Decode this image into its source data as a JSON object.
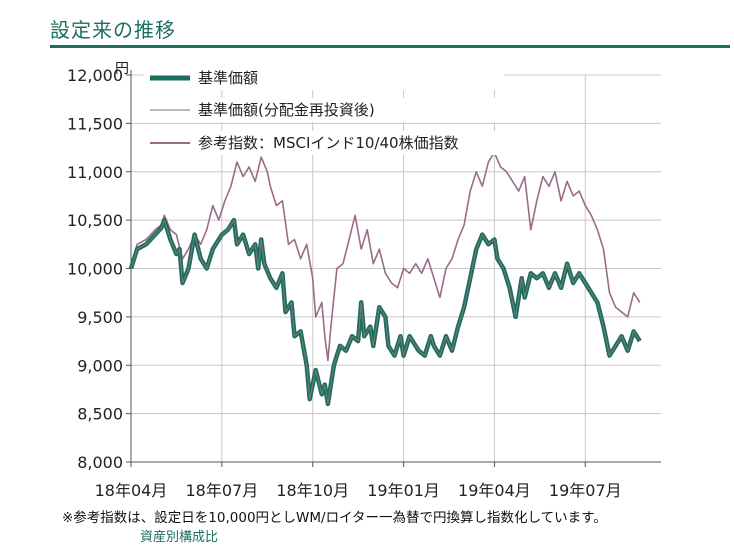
{
  "page": {
    "title": "設定来の推移",
    "footnote": "※参考指数は、設定日を10,000円としWM/ロイター一為替で円換算し指数化しています。",
    "cutoff_text": "資産別構成比"
  },
  "colors": {
    "title": "#1b6f5f",
    "nav": "#1b6f5f",
    "nav_adj": "#7a7a7a",
    "benchmark": "#9b6b88"
  },
  "chart_data": {
    "type": "line",
    "title": "設定来の推移",
    "ylabel": "円",
    "ylim": [
      8000,
      12000
    ],
    "xlim": [
      0,
      17.5
    ],
    "yticks": [
      {
        "value": 12000,
        "label": "12,000"
      },
      {
        "value": 11500,
        "label": "11,500"
      },
      {
        "value": 11000,
        "label": "11,000"
      },
      {
        "value": 10500,
        "label": "10,500"
      },
      {
        "value": 10000,
        "label": "10,000"
      },
      {
        "value": 9500,
        "label": "9,500"
      },
      {
        "value": 9000,
        "label": "9,000"
      },
      {
        "value": 8500,
        "label": "8,500"
      },
      {
        "value": 8000,
        "label": "8,000"
      }
    ],
    "xticks": [
      {
        "value": 0,
        "label": "18年04月"
      },
      {
        "value": 3,
        "label": "18年07月"
      },
      {
        "value": 6,
        "label": "18年10月"
      },
      {
        "value": 9,
        "label": "19年01月"
      },
      {
        "value": 12,
        "label": "19年04月"
      },
      {
        "value": 15,
        "label": "19年07月"
      }
    ],
    "legend_position": "top-left",
    "series": [
      {
        "name": "基準価額",
        "style": "thick",
        "points": [
          [
            0,
            10000
          ],
          [
            0.2,
            10200
          ],
          [
            0.5,
            10250
          ],
          [
            0.8,
            10350
          ],
          [
            1.0,
            10420
          ],
          [
            1.1,
            10500
          ],
          [
            1.3,
            10300
          ],
          [
            1.5,
            10150
          ],
          [
            1.6,
            10200
          ],
          [
            1.7,
            9850
          ],
          [
            1.9,
            10000
          ],
          [
            2.1,
            10350
          ],
          [
            2.3,
            10100
          ],
          [
            2.5,
            10000
          ],
          [
            2.7,
            10200
          ],
          [
            3.0,
            10350
          ],
          [
            3.2,
            10400
          ],
          [
            3.4,
            10500
          ],
          [
            3.5,
            10250
          ],
          [
            3.7,
            10350
          ],
          [
            3.9,
            10150
          ],
          [
            4.1,
            10250
          ],
          [
            4.2,
            10000
          ],
          [
            4.3,
            10300
          ],
          [
            4.4,
            10050
          ],
          [
            4.6,
            9900
          ],
          [
            4.8,
            9800
          ],
          [
            5.0,
            9950
          ],
          [
            5.1,
            9550
          ],
          [
            5.3,
            9650
          ],
          [
            5.4,
            9300
          ],
          [
            5.6,
            9350
          ],
          [
            5.8,
            9000
          ],
          [
            5.9,
            8650
          ],
          [
            6.1,
            8950
          ],
          [
            6.3,
            8700
          ],
          [
            6.4,
            8800
          ],
          [
            6.5,
            8600
          ],
          [
            6.6,
            8800
          ],
          [
            6.7,
            9000
          ],
          [
            6.8,
            9100
          ],
          [
            6.9,
            9200
          ],
          [
            7.1,
            9150
          ],
          [
            7.3,
            9300
          ],
          [
            7.5,
            9250
          ],
          [
            7.6,
            9650
          ],
          [
            7.7,
            9300
          ],
          [
            7.9,
            9400
          ],
          [
            8.0,
            9200
          ],
          [
            8.2,
            9600
          ],
          [
            8.4,
            9500
          ],
          [
            8.5,
            9200
          ],
          [
            8.7,
            9100
          ],
          [
            8.9,
            9300
          ],
          [
            9.0,
            9100
          ],
          [
            9.2,
            9300
          ],
          [
            9.4,
            9200
          ],
          [
            9.5,
            9150
          ],
          [
            9.7,
            9100
          ],
          [
            9.9,
            9300
          ],
          [
            10.0,
            9200
          ],
          [
            10.2,
            9100
          ],
          [
            10.4,
            9300
          ],
          [
            10.6,
            9150
          ],
          [
            10.8,
            9400
          ],
          [
            11.0,
            9600
          ],
          [
            11.2,
            9900
          ],
          [
            11.4,
            10200
          ],
          [
            11.6,
            10350
          ],
          [
            11.8,
            10250
          ],
          [
            12.0,
            10300
          ],
          [
            12.1,
            10100
          ],
          [
            12.3,
            10000
          ],
          [
            12.5,
            9800
          ],
          [
            12.7,
            9500
          ],
          [
            12.9,
            9900
          ],
          [
            13.0,
            9700
          ],
          [
            13.2,
            9950
          ],
          [
            13.4,
            9900
          ],
          [
            13.6,
            9950
          ],
          [
            13.8,
            9800
          ],
          [
            14.0,
            9950
          ],
          [
            14.2,
            9800
          ],
          [
            14.4,
            10050
          ],
          [
            14.6,
            9850
          ],
          [
            14.8,
            9950
          ],
          [
            15.0,
            9850
          ],
          [
            15.2,
            9750
          ],
          [
            15.4,
            9650
          ],
          [
            15.6,
            9400
          ],
          [
            15.8,
            9100
          ],
          [
            16.0,
            9200
          ],
          [
            16.2,
            9300
          ],
          [
            16.4,
            9150
          ],
          [
            16.6,
            9350
          ],
          [
            16.8,
            9250
          ]
        ]
      },
      {
        "name": "基準価額(分配金再投資後)",
        "style": "thin",
        "points": [
          [
            0,
            10000
          ],
          [
            0.2,
            10200
          ],
          [
            0.5,
            10250
          ],
          [
            0.8,
            10350
          ],
          [
            1.0,
            10420
          ],
          [
            1.1,
            10500
          ],
          [
            1.3,
            10300
          ],
          [
            1.5,
            10150
          ],
          [
            1.6,
            10200
          ],
          [
            1.7,
            9850
          ],
          [
            1.9,
            10000
          ],
          [
            2.1,
            10350
          ],
          [
            2.3,
            10100
          ],
          [
            2.5,
            10000
          ],
          [
            2.7,
            10200
          ],
          [
            3.0,
            10350
          ],
          [
            3.2,
            10400
          ],
          [
            3.4,
            10500
          ],
          [
            3.5,
            10250
          ],
          [
            3.7,
            10350
          ],
          [
            3.9,
            10150
          ],
          [
            4.1,
            10250
          ],
          [
            4.2,
            10000
          ],
          [
            4.3,
            10300
          ],
          [
            4.4,
            10050
          ],
          [
            4.6,
            9900
          ],
          [
            4.8,
            9800
          ],
          [
            5.0,
            9950
          ],
          [
            5.1,
            9550
          ],
          [
            5.3,
            9650
          ],
          [
            5.4,
            9300
          ],
          [
            5.6,
            9350
          ],
          [
            5.8,
            9000
          ],
          [
            5.9,
            8650
          ],
          [
            6.1,
            8950
          ],
          [
            6.3,
            8700
          ],
          [
            6.4,
            8800
          ],
          [
            6.5,
            8600
          ],
          [
            6.6,
            8800
          ],
          [
            6.7,
            9000
          ],
          [
            6.8,
            9100
          ],
          [
            6.9,
            9200
          ],
          [
            7.1,
            9150
          ],
          [
            7.3,
            9300
          ],
          [
            7.5,
            9250
          ],
          [
            7.6,
            9650
          ],
          [
            7.7,
            9300
          ],
          [
            7.9,
            9400
          ],
          [
            8.0,
            9200
          ],
          [
            8.2,
            9600
          ],
          [
            8.4,
            9500
          ],
          [
            8.5,
            9200
          ],
          [
            8.7,
            9100
          ],
          [
            8.9,
            9300
          ],
          [
            9.0,
            9100
          ],
          [
            9.2,
            9300
          ],
          [
            9.4,
            9200
          ],
          [
            9.5,
            9150
          ],
          [
            9.7,
            9100
          ],
          [
            9.9,
            9300
          ],
          [
            10.0,
            9200
          ],
          [
            10.2,
            9100
          ],
          [
            10.4,
            9300
          ],
          [
            10.6,
            9150
          ],
          [
            10.8,
            9400
          ],
          [
            11.0,
            9600
          ],
          [
            11.2,
            9900
          ],
          [
            11.4,
            10200
          ],
          [
            11.6,
            10350
          ],
          [
            11.8,
            10250
          ],
          [
            12.0,
            10300
          ],
          [
            12.1,
            10100
          ],
          [
            12.3,
            10000
          ],
          [
            12.5,
            9800
          ],
          [
            12.7,
            9500
          ],
          [
            12.9,
            9900
          ],
          [
            13.0,
            9700
          ],
          [
            13.2,
            9950
          ],
          [
            13.4,
            9900
          ],
          [
            13.6,
            9950
          ],
          [
            13.8,
            9800
          ],
          [
            14.0,
            9950
          ],
          [
            14.2,
            9800
          ],
          [
            14.4,
            10050
          ],
          [
            14.6,
            9850
          ],
          [
            14.8,
            9950
          ],
          [
            15.0,
            9850
          ],
          [
            15.2,
            9750
          ],
          [
            15.4,
            9650
          ],
          [
            15.6,
            9400
          ],
          [
            15.8,
            9100
          ],
          [
            16.0,
            9200
          ],
          [
            16.2,
            9300
          ],
          [
            16.4,
            9150
          ],
          [
            16.6,
            9350
          ],
          [
            16.8,
            9250
          ]
        ]
      },
      {
        "name": "参考指数：MSCIインド10/40株価指数",
        "style": "benchmark",
        "points": [
          [
            0,
            10000
          ],
          [
            0.2,
            10250
          ],
          [
            0.5,
            10300
          ],
          [
            0.8,
            10400
          ],
          [
            1.0,
            10450
          ],
          [
            1.1,
            10550
          ],
          [
            1.3,
            10400
          ],
          [
            1.5,
            10350
          ],
          [
            1.7,
            10100
          ],
          [
            1.9,
            10200
          ],
          [
            2.1,
            10350
          ],
          [
            2.3,
            10250
          ],
          [
            2.5,
            10400
          ],
          [
            2.7,
            10650
          ],
          [
            2.9,
            10500
          ],
          [
            3.1,
            10700
          ],
          [
            3.3,
            10850
          ],
          [
            3.5,
            11100
          ],
          [
            3.7,
            10950
          ],
          [
            3.9,
            11050
          ],
          [
            4.1,
            10900
          ],
          [
            4.3,
            11150
          ],
          [
            4.5,
            11000
          ],
          [
            4.6,
            10850
          ],
          [
            4.8,
            10650
          ],
          [
            5.0,
            10700
          ],
          [
            5.2,
            10250
          ],
          [
            5.4,
            10300
          ],
          [
            5.6,
            10100
          ],
          [
            5.8,
            10250
          ],
          [
            6.0,
            9900
          ],
          [
            6.1,
            9500
          ],
          [
            6.3,
            9650
          ],
          [
            6.4,
            9300
          ],
          [
            6.5,
            9050
          ],
          [
            6.6,
            9400
          ],
          [
            6.7,
            9700
          ],
          [
            6.8,
            10000
          ],
          [
            7.0,
            10050
          ],
          [
            7.2,
            10300
          ],
          [
            7.4,
            10550
          ],
          [
            7.6,
            10200
          ],
          [
            7.8,
            10400
          ],
          [
            8.0,
            10050
          ],
          [
            8.2,
            10200
          ],
          [
            8.4,
            9950
          ],
          [
            8.6,
            9850
          ],
          [
            8.8,
            9800
          ],
          [
            9.0,
            10000
          ],
          [
            9.2,
            9950
          ],
          [
            9.4,
            10050
          ],
          [
            9.6,
            9950
          ],
          [
            9.8,
            10100
          ],
          [
            10.0,
            9900
          ],
          [
            10.2,
            9700
          ],
          [
            10.4,
            10000
          ],
          [
            10.6,
            10100
          ],
          [
            10.8,
            10300
          ],
          [
            11.0,
            10450
          ],
          [
            11.2,
            10800
          ],
          [
            11.4,
            11000
          ],
          [
            11.6,
            10850
          ],
          [
            11.8,
            11100
          ],
          [
            12.0,
            11200
          ],
          [
            12.2,
            11050
          ],
          [
            12.4,
            11000
          ],
          [
            12.6,
            10900
          ],
          [
            12.8,
            10800
          ],
          [
            13.0,
            10950
          ],
          [
            13.2,
            10400
          ],
          [
            13.4,
            10700
          ],
          [
            13.6,
            10950
          ],
          [
            13.8,
            10850
          ],
          [
            14.0,
            11000
          ],
          [
            14.2,
            10700
          ],
          [
            14.4,
            10900
          ],
          [
            14.6,
            10750
          ],
          [
            14.8,
            10800
          ],
          [
            15.0,
            10650
          ],
          [
            15.2,
            10550
          ],
          [
            15.4,
            10400
          ],
          [
            15.6,
            10200
          ],
          [
            15.8,
            9750
          ],
          [
            16.0,
            9600
          ],
          [
            16.2,
            9550
          ],
          [
            16.4,
            9500
          ],
          [
            16.6,
            9750
          ],
          [
            16.8,
            9650
          ]
        ]
      }
    ]
  }
}
